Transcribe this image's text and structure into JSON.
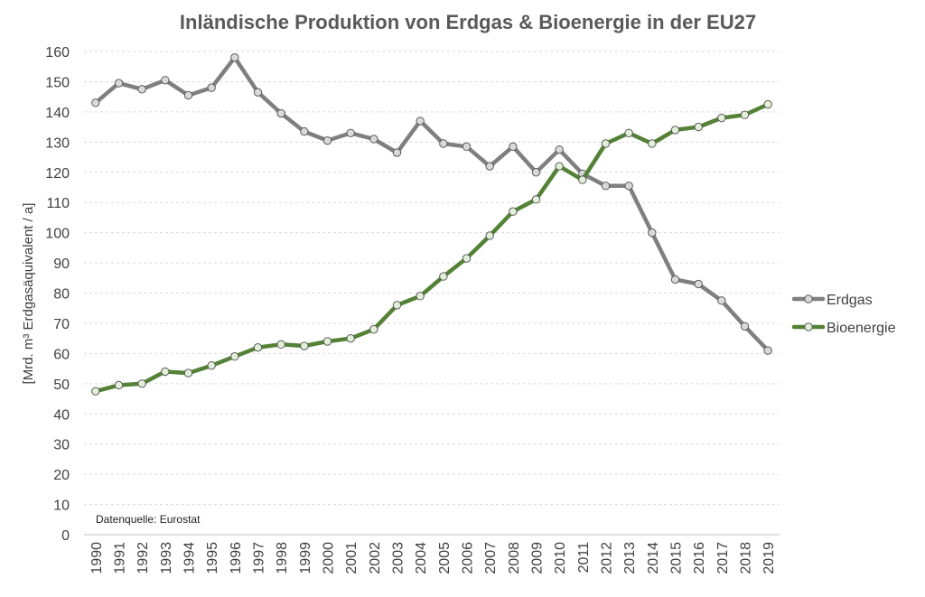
{
  "chart_data": {
    "type": "line",
    "title": "Inländische Produktion von Erdgas & Bioenergie in der EU27",
    "xlabel": "",
    "ylabel": "[Mrd. m³ Erdgasäquivalent / a]",
    "ylim": [
      0,
      160
    ],
    "yticks": [
      0,
      10,
      20,
      30,
      40,
      50,
      60,
      70,
      80,
      90,
      100,
      110,
      120,
      130,
      140,
      150,
      160
    ],
    "grid": true,
    "legend_position": "right",
    "source_note": "Datenquelle:  Eurostat",
    "categories": [
      "1990",
      "1991",
      "1992",
      "1993",
      "1994",
      "1995",
      "1996",
      "1997",
      "1998",
      "1999",
      "2000",
      "2001",
      "2002",
      "2003",
      "2004",
      "2005",
      "2006",
      "2007",
      "2008",
      "2009",
      "2010",
      "2011",
      "2012",
      "2013",
      "2014",
      "2015",
      "2016",
      "2017",
      "2018",
      "2019"
    ],
    "series": [
      {
        "name": "Erdgas",
        "color": "#7f7f7f",
        "marker_fill": "#d9d9d9",
        "values": [
          143,
          149.5,
          147.5,
          150.5,
          145.5,
          148,
          158,
          146.5,
          139.5,
          133.5,
          130.5,
          133,
          131,
          126.5,
          137,
          129.5,
          128.5,
          122,
          128.5,
          120,
          127.5,
          119.5,
          115.5,
          115.5,
          100,
          84.5,
          83,
          77.5,
          69,
          61
        ]
      },
      {
        "name": "Bioenergie",
        "color": "#538135",
        "marker_fill": "#e2efd9",
        "values": [
          47.5,
          49.5,
          50,
          54,
          53.5,
          56,
          59,
          62,
          63,
          62.5,
          64,
          65,
          68,
          76,
          79,
          85.5,
          91.5,
          99,
          107,
          111,
          122,
          117.5,
          129.5,
          133,
          129.5,
          134,
          135,
          138,
          139,
          142.5
        ]
      }
    ]
  }
}
